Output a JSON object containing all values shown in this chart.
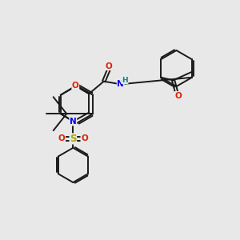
{
  "background_color": "#e8e8e8",
  "figure_size": [
    3.0,
    3.0
  ],
  "dpi": 100,
  "bond_color": "#1a1a1a",
  "bond_width": 1.4,
  "atom_colors": {
    "O": "#dd2200",
    "N": "#0000ee",
    "S": "#aaaa00",
    "H": "#008888",
    "C": "#1a1a1a"
  },
  "font_size": 7.5,
  "font_size_small": 6.5,
  "xlim": [
    0,
    10
  ],
  "ylim": [
    0,
    10
  ]
}
